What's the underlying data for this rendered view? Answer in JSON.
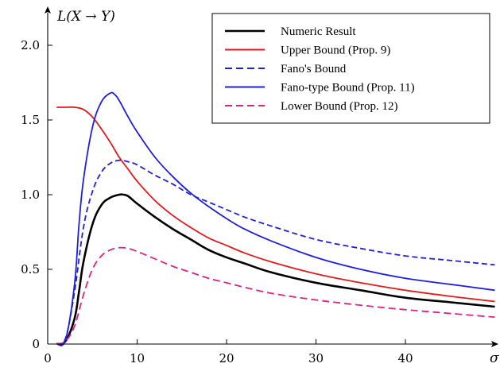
{
  "chart_data": {
    "type": "line",
    "title": "",
    "xlabel": "σ",
    "ylabel": "L(X → Y)",
    "xlim": [
      0,
      50
    ],
    "ylim": [
      0,
      2.2
    ],
    "xticks": [
      0,
      10,
      20,
      30,
      40
    ],
    "xtick_labels": [
      "0",
      "10",
      "20",
      "30",
      "40"
    ],
    "yticks": [
      0,
      0.5,
      1.0,
      1.5,
      2.0
    ],
    "ytick_labels": [
      "0",
      "0.5",
      "1.0",
      "1.5",
      "2.0"
    ],
    "grid": false,
    "legend_position": "top-right",
    "series": [
      {
        "name": "Numeric Result",
        "color": "#000000",
        "dash": "solid",
        "x": [
          1,
          2,
          3,
          3.5,
          4,
          5,
          6,
          7,
          8,
          8.5,
          9,
          10,
          12,
          14,
          16,
          18,
          20,
          22,
          25,
          30,
          35,
          40,
          45,
          50
        ],
        "y": [
          0,
          0.02,
          0.17,
          0.35,
          0.55,
          0.8,
          0.93,
          0.98,
          1.0,
          1.0,
          0.99,
          0.94,
          0.85,
          0.77,
          0.7,
          0.63,
          0.58,
          0.54,
          0.48,
          0.41,
          0.36,
          0.31,
          0.28,
          0.25
        ]
      },
      {
        "name": "Upper Bound (Prop. 9)",
        "color": "#e41a1c",
        "dash": "solid",
        "x": [
          1,
          2,
          3,
          4,
          5,
          6,
          7,
          8,
          9,
          10,
          12,
          14,
          16,
          18,
          20,
          22,
          25,
          30,
          35,
          40,
          45,
          50
        ],
        "y": [
          1.585,
          1.585,
          1.585,
          1.57,
          1.52,
          1.44,
          1.35,
          1.25,
          1.17,
          1.09,
          0.96,
          0.86,
          0.78,
          0.71,
          0.66,
          0.61,
          0.55,
          0.47,
          0.41,
          0.36,
          0.32,
          0.285
        ]
      },
      {
        "name": "Fano's Bound",
        "color": "#1f1fe0",
        "dash": "dashed",
        "x": [
          1,
          2,
          3,
          4,
          5,
          6,
          7,
          8,
          9,
          10,
          12,
          14,
          16,
          18,
          20,
          22,
          25,
          30,
          35,
          40,
          45,
          50
        ],
        "y": [
          0,
          0.04,
          0.35,
          0.78,
          1.02,
          1.15,
          1.21,
          1.23,
          1.22,
          1.2,
          1.13,
          1.07,
          1.0,
          0.95,
          0.9,
          0.85,
          0.79,
          0.7,
          0.64,
          0.59,
          0.56,
          0.53
        ]
      },
      {
        "name": "Fano-type Bound (Prop. 11)",
        "color": "#1f1fe0",
        "dash": "solid",
        "x": [
          1,
          2,
          3,
          3.5,
          4,
          5,
          6,
          7,
          7.5,
          8,
          9,
          10,
          12,
          14,
          16,
          18,
          20,
          22,
          25,
          30,
          35,
          40,
          45,
          50
        ],
        "y": [
          0,
          0.03,
          0.4,
          0.8,
          1.1,
          1.45,
          1.62,
          1.68,
          1.67,
          1.63,
          1.52,
          1.42,
          1.25,
          1.12,
          1.01,
          0.92,
          0.84,
          0.77,
          0.69,
          0.58,
          0.5,
          0.44,
          0.4,
          0.36
        ]
      },
      {
        "name": "Lower Bound (Prop. 12)",
        "color": "#e0208a",
        "dash": "dashed",
        "x": [
          1,
          2,
          3,
          4,
          5,
          6,
          7,
          8,
          9,
          10,
          12,
          14,
          16,
          18,
          20,
          22,
          25,
          30,
          35,
          40,
          45,
          50
        ],
        "y": [
          0,
          0.02,
          0.12,
          0.33,
          0.5,
          0.59,
          0.63,
          0.645,
          0.64,
          0.62,
          0.57,
          0.52,
          0.48,
          0.44,
          0.41,
          0.38,
          0.34,
          0.295,
          0.26,
          0.23,
          0.205,
          0.18
        ]
      }
    ]
  }
}
